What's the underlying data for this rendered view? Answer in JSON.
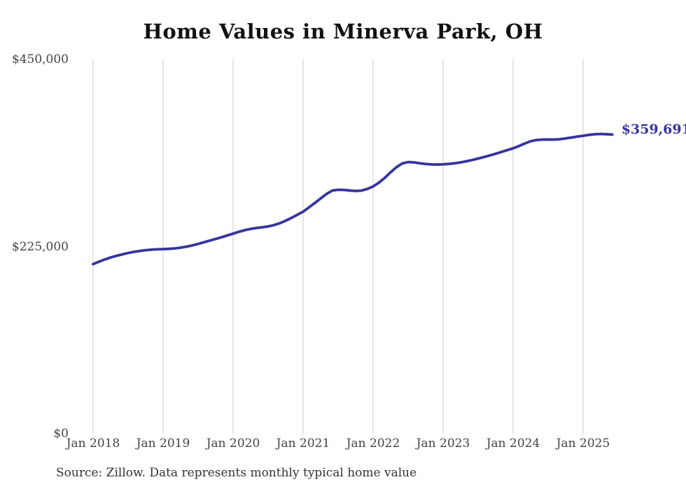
{
  "title": "Home Values in Minerva Park, OH",
  "source_note": "Source: Zillow. Data represents monthly typical home value",
  "colors": {
    "line": "#35359c",
    "grid": "#cbcbcb",
    "title_text": "#111111",
    "axis_text": "#444444",
    "source_text": "#333333",
    "end_label_text": "#35359c",
    "background": "#ffffff"
  },
  "chart_data": {
    "type": "line",
    "title": "Home Values in Minerva Park, OH",
    "xlabel": "",
    "ylabel": "",
    "x_start": "2018-01",
    "x_end": "2025-06",
    "x_frequency": "monthly",
    "ylim": [
      0,
      450000
    ],
    "y_tick_values": [
      450000,
      225000,
      0
    ],
    "y_tick_labels": [
      "$450,000",
      "$225,000",
      "$0"
    ],
    "x_tick_month_indices": [
      0,
      12,
      24,
      36,
      48,
      60,
      72,
      84
    ],
    "x_tick_labels": [
      "Jan 2018",
      "Jan 2019",
      "Jan 2020",
      "Jan 2021",
      "Jan 2022",
      "Jan 2023",
      "Jan 2024",
      "Jan 2025"
    ],
    "grid": "vertical-only",
    "legend": "none",
    "latest_value": 359691,
    "latest_value_label": "$359,691",
    "series": [
      {
        "name": "Typical home value",
        "values": [
          204000,
          206800,
          209500,
          211900,
          213900,
          215700,
          217300,
          218700,
          219800,
          220700,
          221300,
          221700,
          222000,
          222300,
          222800,
          223700,
          224900,
          226400,
          228200,
          230200,
          232200,
          234200,
          236200,
          238400,
          240600,
          242800,
          244800,
          246300,
          247400,
          248200,
          249200,
          250800,
          253100,
          256100,
          259500,
          263200,
          267000,
          272100,
          277400,
          282900,
          288200,
          292400,
          293300,
          293100,
          292500,
          291900,
          292300,
          294300,
          297300,
          301900,
          307700,
          314300,
          320500,
          325000,
          326600,
          326300,
          325200,
          324300,
          323800,
          323700,
          323900,
          324400,
          325200,
          326300,
          327600,
          329100,
          330900,
          332700,
          334600,
          336600,
          338800,
          341000,
          343200,
          345900,
          349000,
          351700,
          353100,
          353700,
          353800,
          353700,
          354100,
          355000,
          356100,
          357200,
          358200,
          359300,
          360100,
          360400,
          360200,
          359691
        ]
      }
    ]
  }
}
